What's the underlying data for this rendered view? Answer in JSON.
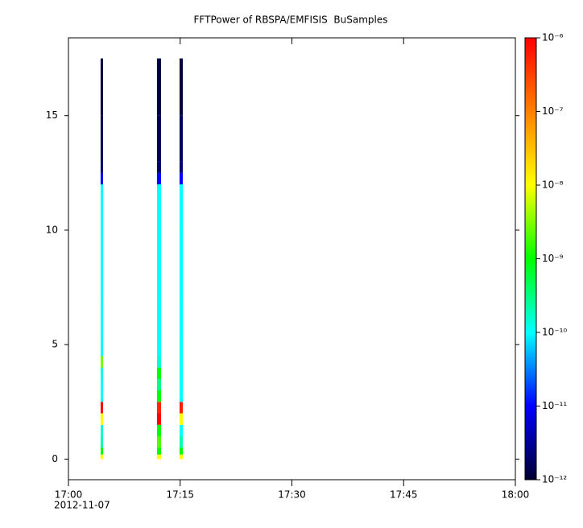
{
  "chart_data": {
    "type": "spectrogram",
    "title": "FFTPower of RBSPA/EMFISIS  BuSamples",
    "xlim": [
      "2012-11-07T17:00:00",
      "2012-11-07T18:00:00"
    ],
    "xticks": [
      {
        "value": "2012-11-07T17:00:00",
        "label": "17:00"
      },
      {
        "value": "2012-11-07T17:15:00",
        "label": "17:15"
      },
      {
        "value": "2012-11-07T17:30:00",
        "label": "17:30"
      },
      {
        "value": "2012-11-07T17:45:00",
        "label": "17:45"
      },
      {
        "value": "2012-11-07T18:00:00",
        "label": "18:00"
      }
    ],
    "x_date_label": "2012-11-07",
    "ylim": [
      -0.9,
      18.4
    ],
    "yticks": [
      0,
      5,
      10,
      15
    ],
    "y_edges": [
      0,
      0.2,
      0.5,
      1,
      1.5,
      2,
      2.5,
      3,
      3.5,
      4,
      4.5,
      5,
      7,
      10,
      12,
      12.5,
      13,
      15,
      17.5
    ],
    "columns": [
      {
        "start": "2012-11-07T17:04:19",
        "end": "2012-11-07T17:04:39",
        "values": [
          1e-08,
          1e-09,
          2e-10,
          1.5e-10,
          1e-08,
          8e-07,
          1e-10,
          1e-10,
          1.2e-10,
          3e-09,
          1e-10,
          1e-10,
          1e-10,
          1e-10,
          1e-11,
          2e-12,
          1.5e-12,
          1.2e-12
        ]
      },
      {
        "start": "2012-11-07T17:11:53",
        "end": "2012-11-07T17:12:26",
        "values": [
          1e-08,
          1e-09,
          2e-09,
          1e-09,
          1e-06,
          5e-07,
          1e-09,
          3e-10,
          1e-09,
          1.5e-10,
          1e-10,
          1e-10,
          1e-10,
          1e-10,
          1e-11,
          2e-12,
          1.5e-12,
          1.2e-12
        ]
      },
      {
        "start": "2012-11-07T17:14:55",
        "end": "2012-11-07T17:15:21",
        "values": [
          1e-08,
          1e-09,
          2e-10,
          1e-10,
          1e-08,
          6e-07,
          1e-10,
          1e-10,
          1e-10,
          1e-10,
          1e-10,
          1e-10,
          1e-10,
          1e-10,
          1e-11,
          2e-12,
          1.5e-12,
          1.2e-12
        ]
      }
    ],
    "zlim": [
      1e-12,
      1e-06
    ],
    "zlog": true,
    "zticks": [
      {
        "value": 1e-06,
        "label": "10⁻⁶"
      },
      {
        "value": 1e-07,
        "label": "10⁻⁷"
      },
      {
        "value": 1e-08,
        "label": "10⁻⁸"
      },
      {
        "value": 1e-09,
        "label": "10⁻⁹"
      },
      {
        "value": 1e-10,
        "label": "10⁻¹⁰"
      },
      {
        "value": 1e-11,
        "label": "10⁻¹¹"
      },
      {
        "value": 1e-12,
        "label": "10⁻¹²"
      }
    ],
    "colormap": [
      "#000030",
      "#0000ff",
      "#00ffff",
      "#00ff00",
      "#ffff00",
      "#ff8000",
      "#ff0000"
    ]
  }
}
